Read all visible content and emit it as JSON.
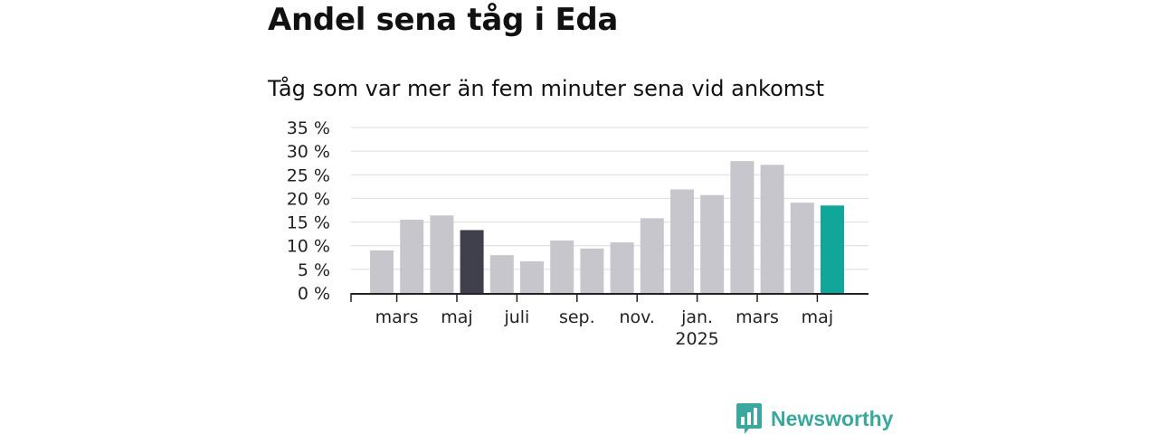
{
  "title": "Andel sena tåg i Eda",
  "subtitle": "Tåg som var mer än fem minuter sena vid ankomst",
  "brand": {
    "name": "Newsworthy",
    "logo_icon": "newsworthy-bar-chart-logo"
  },
  "colors": {
    "default_bar": "#c6c6cc",
    "highlight_bar": "#403f4c",
    "current_bar": "#10a69a",
    "gridline": "#dcdcdc",
    "axis": "#222222"
  },
  "chart_data": {
    "type": "bar",
    "title": "Andel sena tåg i Eda",
    "subtitle": "Tåg som var mer än fem minuter sena vid ankomst",
    "x": [
      "2024-02",
      "2024-03",
      "2024-04",
      "2024-05",
      "2024-06",
      "2024-07",
      "2024-08",
      "2024-09",
      "2024-10",
      "2024-11",
      "2024-12",
      "2025-01",
      "2025-02",
      "2025-03",
      "2025-04",
      "2025-05"
    ],
    "values": [
      9.0,
      15.5,
      16.4,
      13.3,
      8.0,
      6.7,
      11.1,
      9.4,
      10.7,
      15.8,
      21.9,
      20.7,
      27.9,
      27.1,
      19.1,
      18.5
    ],
    "highlighted": {
      "2024-05": "dark",
      "2025-05": "accent"
    },
    "ylim": [
      0,
      35
    ],
    "yticks": [
      0,
      5,
      10,
      15,
      20,
      25,
      30,
      35
    ],
    "ytick_labels": [
      "0 %",
      "5 %",
      "10 %",
      "15 %",
      "20 %",
      "25 %",
      "30 %",
      "35 %"
    ],
    "xticks": [
      {
        "month": "2024-03",
        "label": "mars",
        "year": ""
      },
      {
        "month": "2024-05",
        "label": "maj",
        "year": ""
      },
      {
        "month": "2024-07",
        "label": "juli",
        "year": ""
      },
      {
        "month": "2024-09",
        "label": "sep.",
        "year": ""
      },
      {
        "month": "2024-11",
        "label": "nov.",
        "year": ""
      },
      {
        "month": "2025-01",
        "label": "jan.",
        "year": "2025"
      },
      {
        "month": "2025-03",
        "label": "mars",
        "year": ""
      },
      {
        "month": "2025-05",
        "label": "maj",
        "year": ""
      }
    ],
    "grid": true,
    "xlabel": "",
    "ylabel": ""
  }
}
